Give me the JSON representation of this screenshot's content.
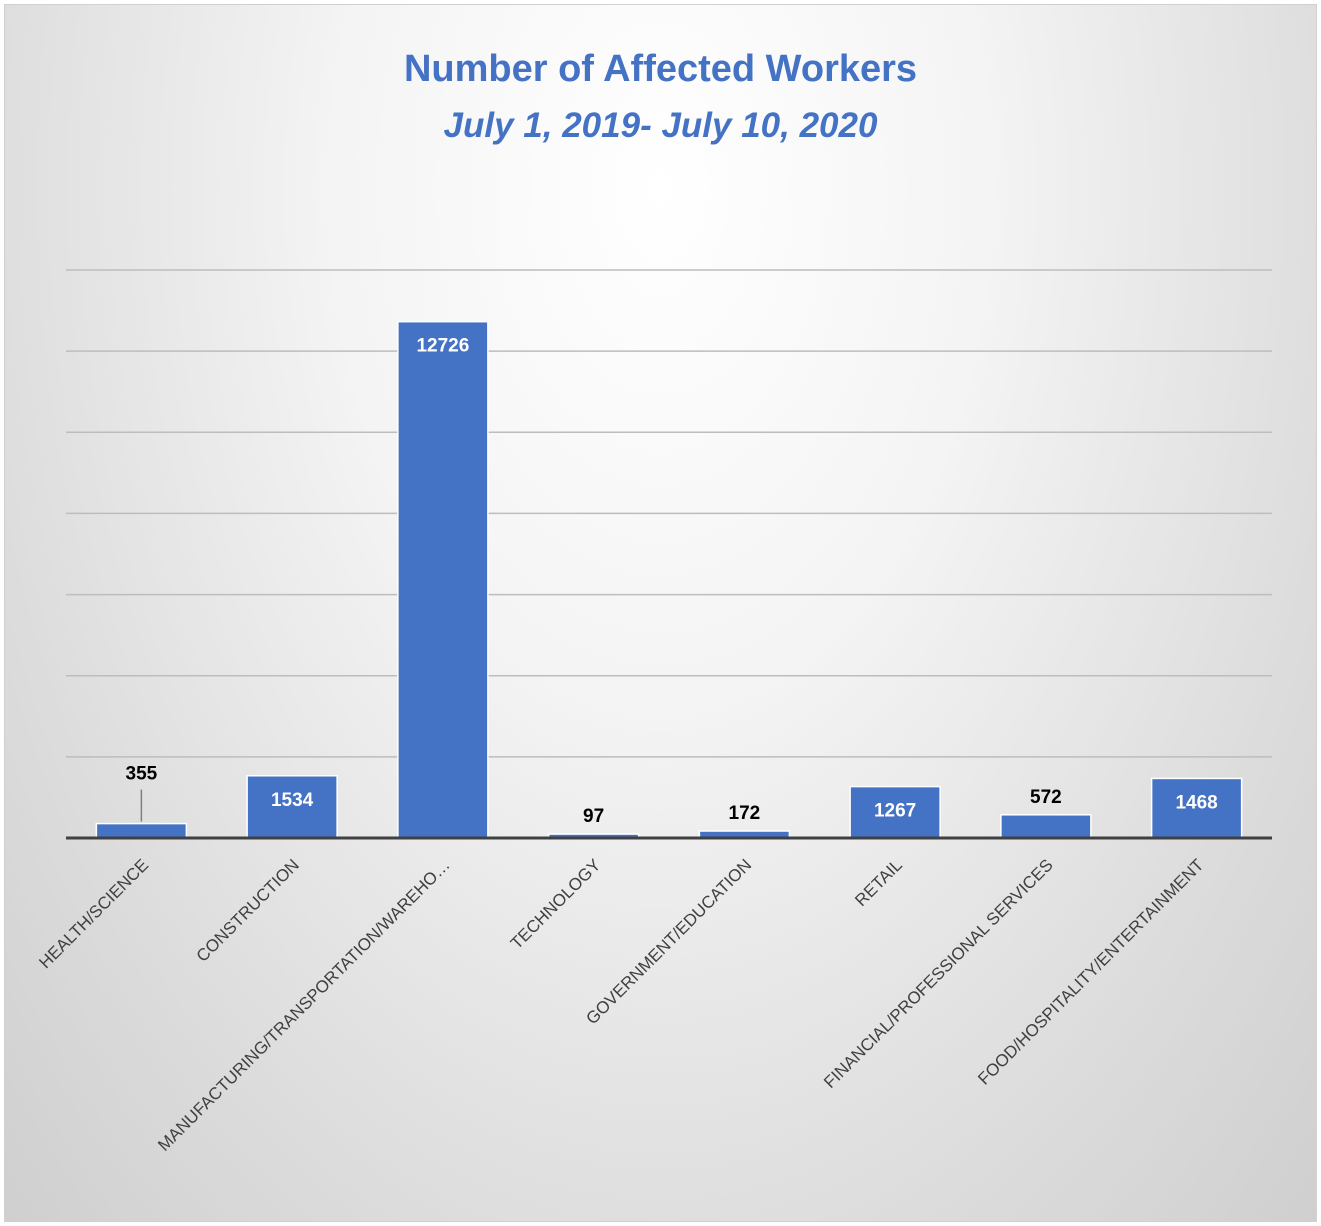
{
  "chart_data": {
    "type": "bar",
    "title": "Number of Affected Workers",
    "subtitle": "July 1, 2019- July 10, 2020",
    "categories": [
      "HEALTH/SCIENCE",
      "CONSTRUCTION",
      "MANUFACTURING/TRANSPORTATION/WAREHO…",
      "TECHNOLOGY",
      "GOVERNMENT/EDUCATION",
      "RETAIL",
      "FINANCIAL/PROFESSIONAL SERVICES",
      "FOOD/HOSPITALITY/ENTERTAINMENT"
    ],
    "values": [
      355,
      1534,
      12726,
      97,
      172,
      1267,
      572,
      1468
    ],
    "data_labels": [
      "355",
      "1534",
      "12726",
      "97",
      "172",
      "1267",
      "572",
      "1468"
    ],
    "ylim": [
      0,
      14000
    ],
    "y_gridline_step": 2000,
    "grid": true,
    "legend": "none",
    "bar_color": "#4472c4",
    "title_color": "#4472c4"
  }
}
